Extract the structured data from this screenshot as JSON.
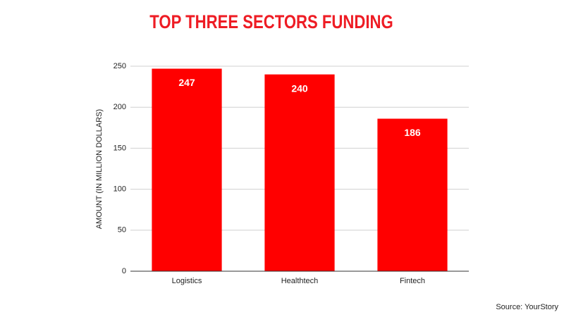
{
  "chart_data": {
    "type": "bar",
    "title": "TOP THREE SECTORS FUNDING",
    "y_axis_label": "AMOUNT (IN MILLION DOLLARS)",
    "categories": [
      "Logistics",
      "Healthtech",
      "Fintech"
    ],
    "values": [
      247,
      240,
      186
    ],
    "color": "#ff0000",
    "ylim": [
      0,
      250
    ],
    "yticks": [
      0,
      50,
      100,
      150,
      200,
      250
    ],
    "grid": true,
    "source": "Source: YourStory"
  }
}
